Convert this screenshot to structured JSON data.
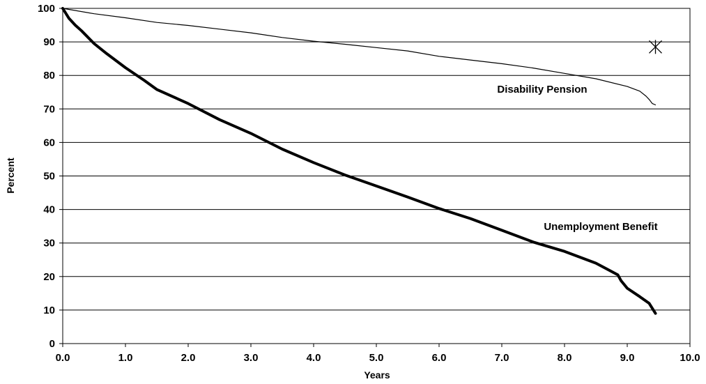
{
  "chart_data": {
    "type": "line",
    "title": "",
    "xlabel": "Years",
    "ylabel": "Percent",
    "xlim": [
      0,
      10
    ],
    "ylim": [
      0,
      100
    ],
    "x_ticks": [
      "0.0",
      "1.0",
      "2.0",
      "3.0",
      "4.0",
      "5.0",
      "6.0",
      "7.0",
      "8.0",
      "9.0",
      "10.0"
    ],
    "y_ticks": [
      "0",
      "10",
      "20",
      "30",
      "40",
      "50",
      "60",
      "70",
      "80",
      "90",
      "100"
    ],
    "grid": "horizontal",
    "legend": "none",
    "series": [
      {
        "name": "Disability Pension",
        "style": "thin",
        "x": [
          0,
          0.5,
          1.0,
          1.5,
          2.0,
          2.5,
          3.0,
          3.5,
          4.0,
          4.5,
          5.0,
          5.5,
          6.0,
          6.5,
          7.0,
          7.5,
          8.0,
          8.5,
          9.0,
          9.2,
          9.3,
          9.35,
          9.4,
          9.45
        ],
        "y": [
          100,
          98.4,
          97.2,
          95.8,
          94.9,
          93.8,
          92.7,
          91.3,
          90.2,
          89.3,
          88.3,
          87.3,
          85.7,
          84.6,
          83.5,
          82.2,
          80.6,
          79.0,
          76.7,
          75.3,
          73.8,
          72.8,
          71.6,
          71.2
        ]
      },
      {
        "name": "Unemployment Benefit",
        "style": "thick",
        "x": [
          0,
          0.1,
          0.2,
          0.3,
          0.5,
          0.7,
          1.0,
          1.3,
          1.5,
          2.0,
          2.5,
          3.0,
          3.5,
          4.0,
          4.5,
          5.0,
          5.5,
          6.0,
          6.5,
          7.0,
          7.5,
          8.0,
          8.5,
          8.85,
          8.9,
          9.0,
          9.2,
          9.35,
          9.45
        ],
        "y": [
          100,
          97,
          95,
          93.3,
          89.5,
          86.5,
          82.3,
          78.5,
          75.8,
          71.6,
          66.8,
          62.7,
          58,
          54,
          50.3,
          47,
          43.7,
          40.3,
          37.3,
          33.8,
          30.3,
          27.5,
          24,
          20.5,
          18.8,
          16.5,
          14,
          12,
          9
        ]
      }
    ],
    "marker": {
      "symbol": "asterisk",
      "x": 9.45,
      "y": 88.5
    },
    "annotations": {
      "disability_label": "Disability Pension",
      "unemployment_label": "Unemployment Benefit"
    }
  }
}
